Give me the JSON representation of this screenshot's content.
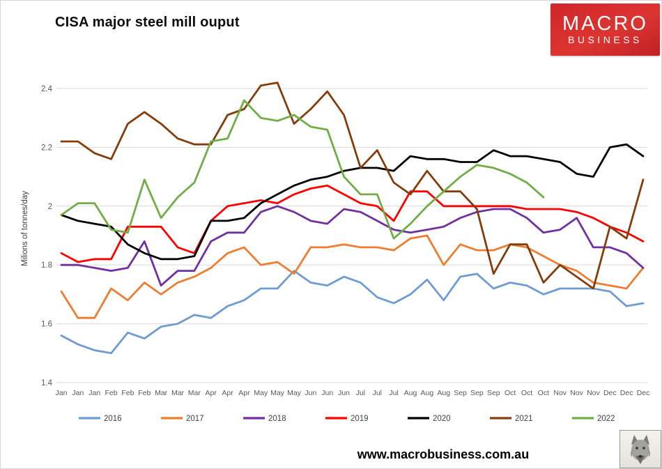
{
  "header": {
    "title": "CISA major steel mill ouput"
  },
  "logo": {
    "line1": "MACRO",
    "line2": "BUSINESS",
    "bg_color": "#d0252b",
    "text_color": "#ffffff"
  },
  "footer": {
    "url": "www.macrobusiness.com.au",
    "badge": "wolf-drawing"
  },
  "colors": {
    "gridline": "#d9d9d9",
    "axis_text": "#595959",
    "border": "#d6d6d6"
  },
  "chart_data": {
    "type": "line",
    "title": "CISA major steel mill ouput",
    "xlabel": "",
    "ylabel": "Milions of tonnes/day",
    "ylim": [
      1.4,
      2.4
    ],
    "yticks": [
      1.4,
      1.6,
      1.8,
      2.0,
      2.2,
      2.4
    ],
    "ytick_labels": [
      "1.4",
      "1.6",
      "1.8",
      "2",
      "2.2",
      "2.4"
    ],
    "grid": true,
    "legend_position": "bottom",
    "x_labels": [
      "Jan",
      "Jan",
      "Jan",
      "Feb",
      "Feb",
      "Feb",
      "Mar",
      "Mar",
      "Mar",
      "Apr",
      "Apr",
      "Apr",
      "May",
      "May",
      "May",
      "Jun",
      "Jun",
      "Jun",
      "Jul",
      "Jul",
      "Jul",
      "Aug",
      "Aug",
      "Aug",
      "Sep",
      "Sep",
      "Sep",
      "Oct",
      "Oct",
      "Oct",
      "Nov",
      "Nov",
      "Nov",
      "Dec",
      "Dec",
      "Dec"
    ],
    "series": [
      {
        "name": "2016",
        "color": "#6E9CD2",
        "values": [
          1.56,
          1.53,
          1.51,
          1.5,
          1.57,
          1.55,
          1.59,
          1.6,
          1.63,
          1.62,
          1.66,
          1.68,
          1.72,
          1.72,
          1.78,
          1.74,
          1.73,
          1.76,
          1.74,
          1.69,
          1.67,
          1.7,
          1.75,
          1.68,
          1.76,
          1.77,
          1.72,
          1.74,
          1.73,
          1.7,
          1.72,
          1.72,
          1.72,
          1.71,
          1.66,
          1.67
        ]
      },
      {
        "name": "2017",
        "color": "#ED7D31",
        "values": [
          1.71,
          1.62,
          1.62,
          1.72,
          1.68,
          1.74,
          1.7,
          1.74,
          1.76,
          1.79,
          1.84,
          1.86,
          1.8,
          1.81,
          1.77,
          1.86,
          1.86,
          1.87,
          1.86,
          1.86,
          1.85,
          1.89,
          1.9,
          1.8,
          1.87,
          1.85,
          1.85,
          1.87,
          1.86,
          1.83,
          1.8,
          1.78,
          1.74,
          1.73,
          1.72,
          1.79
        ]
      },
      {
        "name": "2018",
        "color": "#7030A0",
        "values": [
          1.8,
          1.8,
          1.79,
          1.78,
          1.79,
          1.88,
          1.73,
          1.78,
          1.78,
          1.88,
          1.91,
          1.91,
          1.98,
          2.0,
          1.98,
          1.95,
          1.94,
          1.99,
          1.98,
          1.95,
          1.92,
          1.91,
          1.92,
          1.93,
          1.96,
          1.98,
          1.99,
          1.99,
          1.96,
          1.91,
          1.92,
          1.96,
          1.86,
          1.86,
          1.84,
          1.79
        ]
      },
      {
        "name": "2019",
        "color": "#FF0000",
        "values": [
          1.84,
          1.81,
          1.82,
          1.82,
          1.93,
          1.93,
          1.93,
          1.86,
          1.84,
          1.95,
          2.0,
          2.01,
          2.02,
          2.01,
          2.04,
          2.06,
          2.07,
          2.04,
          2.01,
          2.0,
          1.95,
          2.05,
          2.05,
          2.0,
          2.0,
          2.0,
          2.0,
          2.0,
          1.99,
          1.99,
          1.99,
          1.98,
          1.96,
          1.93,
          1.91,
          1.88
        ]
      },
      {
        "name": "2020",
        "color": "#000000",
        "values": [
          1.97,
          1.95,
          1.94,
          1.93,
          1.87,
          1.84,
          1.82,
          1.82,
          1.83,
          1.95,
          1.95,
          1.96,
          2.01,
          2.04,
          2.07,
          2.09,
          2.1,
          2.12,
          2.13,
          2.13,
          2.12,
          2.17,
          2.16,
          2.16,
          2.15,
          2.15,
          2.19,
          2.17,
          2.17,
          2.16,
          2.15,
          2.11,
          2.1,
          2.2,
          2.21,
          2.17
        ]
      },
      {
        "name": "2021",
        "color": "#843C0C",
        "values": [
          2.22,
          2.22,
          2.18,
          2.16,
          2.28,
          2.32,
          2.28,
          2.23,
          2.21,
          2.21,
          2.31,
          2.33,
          2.41,
          2.42,
          2.28,
          2.33,
          2.39,
          2.31,
          2.13,
          2.19,
          2.08,
          2.04,
          2.12,
          2.05,
          2.05,
          1.99,
          1.77,
          1.87,
          1.87,
          1.74,
          1.8,
          1.76,
          1.72,
          1.93,
          1.89,
          2.09
        ]
      },
      {
        "name": "2022",
        "color": "#70AD47",
        "values": [
          1.97,
          2.01,
          2.01,
          1.92,
          1.91,
          2.09,
          1.96,
          2.03,
          2.08,
          2.22,
          2.23,
          2.36,
          2.3,
          2.29,
          2.31,
          2.27,
          2.26,
          2.1,
          2.04,
          2.04,
          1.89,
          1.94,
          2.0,
          2.05,
          2.1,
          2.14,
          2.13,
          2.11,
          2.08,
          2.03
        ]
      }
    ]
  }
}
